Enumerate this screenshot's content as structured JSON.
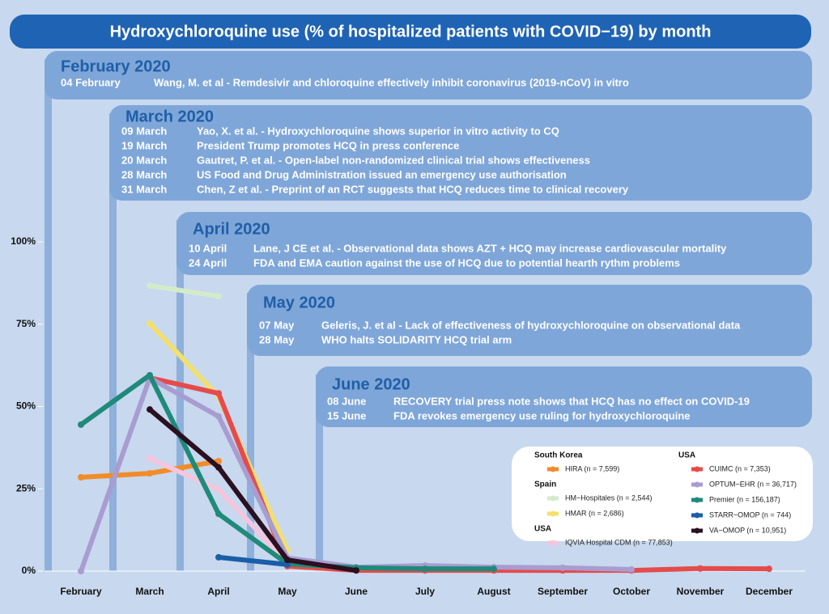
{
  "chart_data": {
    "type": "line",
    "title": "Hydroxychloroquine use (% of hospitalized patients with COVID−19) by month",
    "categories": [
      "February",
      "March",
      "April",
      "May",
      "June",
      "July",
      "August",
      "September",
      "October",
      "November",
      "December"
    ],
    "ylim": [
      0,
      100
    ],
    "yticks": [
      {
        "value": 0,
        "label": "0%"
      },
      {
        "value": 25,
        "label": "25%"
      },
      {
        "value": 50,
        "label": "50%"
      },
      {
        "value": 75,
        "label": "75%"
      },
      {
        "value": 100,
        "label": "100%"
      }
    ],
    "series": [
      {
        "name": "HIRA (n = 7,599)",
        "group": "South Korea",
        "color": "#f28c28",
        "values": [
          28.5,
          29.7,
          33.4,
          null,
          null,
          null,
          null,
          null,
          null,
          null,
          null
        ]
      },
      {
        "name": "HM−Hospitales (n = 2,544)",
        "group": "Spain",
        "color": "#d4ebc9",
        "values": [
          null,
          86.7,
          83.5,
          null,
          null,
          null,
          null,
          null,
          null,
          null,
          null
        ]
      },
      {
        "name": "HMAR (n = 2,686)",
        "group": "Spain",
        "color": "#f2e06e",
        "values": [
          null,
          75.2,
          53,
          6.4,
          null,
          null,
          null,
          null,
          null,
          null,
          null
        ]
      },
      {
        "name": "IQVIA Hospital CDM (n = 77,853)",
        "group": "USA",
        "color": "#f4c6dc",
        "values": [
          null,
          34.2,
          24.8,
          2.7,
          null,
          null,
          null,
          null,
          null,
          null,
          null
        ]
      },
      {
        "name": "CUIMC (n = 7,353)",
        "group": "USA",
        "color": "#e54b4b",
        "values": [
          null,
          58.7,
          54,
          1.5,
          0.2,
          0.2,
          0.2,
          0.2,
          0.2,
          0.8,
          0.7
        ]
      },
      {
        "name": "OPTUM−EHR (n = 36,717)",
        "group": "USA",
        "color": "#a89cd0",
        "values": [
          0,
          58.7,
          47,
          4,
          1.2,
          1.7,
          1.2,
          1,
          0.5,
          null,
          null
        ]
      },
      {
        "name": "Premier (n = 156,187)",
        "group": "USA",
        "color": "#1f8a7a",
        "values": [
          44.5,
          59.5,
          17.4,
          2.2,
          1,
          0.7,
          0.7,
          null,
          null,
          null,
          null
        ]
      },
      {
        "name": "STARR−OMOP (n = 744)",
        "group": "USA",
        "color": "#1a5ea8",
        "values": [
          null,
          null,
          4.2,
          2,
          null,
          null,
          null,
          null,
          null,
          null,
          null
        ]
      },
      {
        "name": "VA−OMOP (n = 10,951)",
        "group": "USA",
        "color": "#2a1020",
        "values": [
          null,
          49.1,
          31.5,
          3.4,
          0.2,
          null,
          null,
          null,
          null,
          null,
          null
        ]
      }
    ],
    "timeline": [
      {
        "title": "February 2020",
        "events": [
          {
            "date": "04 February",
            "text": "Wang, M. et al - Remdesivir and chloroquine effectively inhibit coronavirus (2019-nCoV) in vitro"
          }
        ]
      },
      {
        "title": "March 2020",
        "events": [
          {
            "date": "09 March",
            "text": "Yao, X. et al. - Hydroxychloroquine shows superior in vitro activity to CQ"
          },
          {
            "date": "19 March",
            "text": "President Trump promotes HCQ in press conference"
          },
          {
            "date": "20 March",
            "text": "Gautret, P. et al. - Open-label non-randomized clinical trial shows effectiveness"
          },
          {
            "date": "28 March",
            "text": "US Food and Drug Administration issued an emergency use authorisation"
          },
          {
            "date": "31 March",
            "text": "Chen, Z et al. -  Preprint of an RCT suggests that HCQ reduces time to clinical recovery"
          }
        ]
      },
      {
        "title": "April 2020",
        "events": [
          {
            "date": "10 April",
            "text": "Lane, J CE et al. - Observational data shows AZT + HCQ may increase cardiovascular mortality"
          },
          {
            "date": "24 April",
            "text": "FDA and EMA caution against the use of HCQ due to potential hearth rythm problems"
          }
        ]
      },
      {
        "title": "May 2020",
        "events": [
          {
            "date": "07 May",
            "text": "Geleris, J.  et al - Lack of effectiveness of hydroxychloroquine on observational data"
          },
          {
            "date": "28 May",
            "text": "WHO halts SOLIDARITY HCQ trial arm"
          }
        ]
      },
      {
        "title": "June 2020",
        "events": [
          {
            "date": "08 June",
            "text": "RECOVERY trial press note shows that HCQ has no effect on COVID-19"
          },
          {
            "date": "15 June",
            "text": "FDA revokes emergency use ruling for hydroxychloroquine"
          }
        ]
      }
    ]
  }
}
